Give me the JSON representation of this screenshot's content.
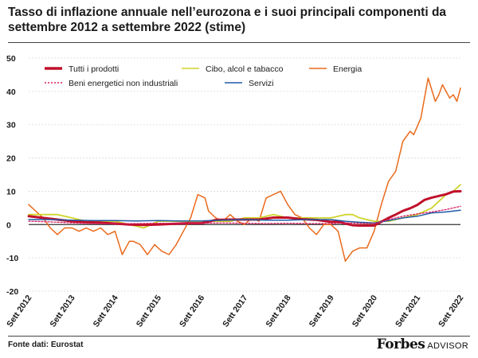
{
  "title": "Tasso di inflazione annuale nell’eurozona e i suoi principali componenti da settembre 2012 a settembre 2022 (stime)",
  "source": "Fonte dati: Eurostat",
  "brand": {
    "name": "Forbes",
    "sub": "ADVISOR"
  },
  "chart_data": {
    "type": "line",
    "title": "Tasso di inflazione annuale nell’eurozona e i suoi principali componenti da settembre 2012 a settembre 2022 (stime)",
    "xlabel": "",
    "ylabel": "",
    "ylim": [
      -20,
      50
    ],
    "yticks": [
      50,
      40,
      30,
      20,
      10,
      0,
      -10,
      -20
    ],
    "xlim": [
      0,
      120
    ],
    "x_tick_positions": [
      0,
      12,
      24,
      36,
      48,
      60,
      72,
      84,
      96,
      108,
      120
    ],
    "categories": [
      "Sett 2012",
      "Sett 2013",
      "Sett 2014",
      "Sett 2015",
      "Sett 2016",
      "Sett 2017",
      "Sett 2018",
      "Sett 2019",
      "Sett 2020",
      "Sett 2021",
      "Sett 2022"
    ],
    "legend": {
      "rows": [
        [
          {
            "name": "Tutti i prodotti",
            "color": "#c0102a",
            "style": "thick"
          },
          {
            "name": "Cibo, alcol e tabacco",
            "color": "#cfd32a",
            "style": "solid"
          },
          {
            "name": "Energia",
            "color": "#ea6a1b",
            "style": "solid"
          }
        ],
        [
          {
            "name": "Beni energetici non industriali",
            "color": "#d81b60",
            "style": "dotted"
          },
          {
            "name": "Servizi",
            "color": "#1f5aa6",
            "style": "solid"
          }
        ]
      ]
    },
    "series": [
      {
        "name": "Energia",
        "color": "#ea6a1b",
        "width": 1.5,
        "x": [
          0,
          2,
          4,
          6,
          8,
          10,
          12,
          14,
          16,
          18,
          20,
          22,
          24,
          26,
          28,
          29,
          31,
          33,
          35,
          37,
          39,
          41,
          43,
          45,
          47,
          49,
          50,
          52,
          54,
          56,
          58,
          60,
          62,
          64,
          66,
          68,
          70,
          72,
          74,
          76,
          78,
          80,
          82,
          84,
          86,
          88,
          90,
          92,
          94,
          96,
          98,
          100,
          102,
          104,
          106,
          107,
          109,
          111,
          113,
          114,
          115,
          116,
          117,
          118,
          119,
          120
        ],
        "values": [
          6,
          4,
          2,
          -1,
          -3,
          -1,
          -1,
          -2,
          -1,
          -2,
          -1,
          -3,
          -2,
          -9,
          -5,
          -5,
          -6,
          -9,
          -6,
          -8,
          -9,
          -6,
          -2,
          2,
          9,
          8,
          4,
          2,
          1,
          3,
          1,
          0,
          2,
          1,
          8,
          9,
          10,
          6,
          3,
          2,
          -1,
          -3,
          0,
          0,
          -2,
          -11,
          -8,
          -7,
          -7,
          -2,
          6,
          13,
          16,
          25,
          28,
          27,
          32,
          44,
          37,
          39,
          42,
          40,
          38,
          39,
          37,
          41
        ]
      },
      {
        "name": "Cibo, alcol e tabacco",
        "color": "#cfd32a",
        "width": 1.8,
        "x": [
          0,
          4,
          8,
          12,
          16,
          20,
          24,
          28,
          32,
          36,
          40,
          44,
          48,
          52,
          56,
          60,
          64,
          68,
          72,
          76,
          80,
          84,
          88,
          90,
          92,
          96,
          100,
          104,
          108,
          112,
          116,
          118,
          120
        ],
        "values": [
          3,
          3,
          3,
          2,
          1,
          1,
          1,
          0,
          -1,
          1,
          1,
          1,
          1,
          1,
          1,
          2,
          2,
          3,
          2,
          2,
          2,
          2,
          3,
          3,
          2,
          1,
          1,
          2,
          3,
          5,
          9,
          10,
          12
        ]
      },
      {
        "name": "Tutti i prodotti",
        "color": "#c0102a",
        "width": 3,
        "x": [
          0,
          4,
          8,
          12,
          16,
          20,
          24,
          28,
          32,
          36,
          40,
          44,
          48,
          52,
          56,
          60,
          64,
          68,
          72,
          76,
          80,
          84,
          86,
          88,
          90,
          92,
          96,
          100,
          102,
          104,
          106,
          108,
          110,
          112,
          114,
          116,
          118,
          120
        ],
        "values": [
          2.5,
          2,
          1.5,
          1,
          0.7,
          0.6,
          0.3,
          0,
          -0.1,
          0,
          0.2,
          0.4,
          0.4,
          1.4,
          1.5,
          1.5,
          1.5,
          2.1,
          2.1,
          1.6,
          1.4,
          0.8,
          0.9,
          0.3,
          -0.2,
          -0.3,
          -0.3,
          2,
          3,
          4.1,
          4.9,
          5.9,
          7.4,
          8.1,
          8.6,
          9.1,
          9.9,
          10
        ]
      },
      {
        "name": "Servizi",
        "color": "#1f5aa6",
        "width": 1.5,
        "x": [
          0,
          6,
          12,
          18,
          24,
          30,
          36,
          42,
          48,
          54,
          60,
          66,
          72,
          78,
          84,
          88,
          92,
          96,
          100,
          104,
          108,
          112,
          116,
          120
        ],
        "values": [
          1.5,
          1.5,
          1.3,
          1.2,
          1.2,
          1.1,
          1.2,
          1.1,
          1.1,
          1.3,
          1.5,
          1.3,
          1.3,
          1.5,
          1.5,
          1,
          0.7,
          0.5,
          1.2,
          2,
          2.5,
          3.5,
          3.8,
          4.3
        ]
      },
      {
        "name": "Beni energetici non industriali",
        "color": "#d81b60",
        "width": 1.3,
        "dash": "2,2",
        "x": [
          0,
          6,
          12,
          18,
          24,
          30,
          36,
          42,
          48,
          54,
          60,
          66,
          72,
          78,
          84,
          88,
          92,
          96,
          100,
          104,
          108,
          112,
          116,
          120
        ],
        "values": [
          1,
          0.8,
          0.5,
          0.3,
          0.2,
          0.3,
          0.4,
          0.3,
          0.4,
          0.5,
          0.4,
          0.3,
          0.4,
          0.3,
          0.3,
          0.5,
          0.4,
          0.3,
          1.5,
          2.5,
          3.2,
          3.8,
          4.5,
          5.5
        ]
      }
    ]
  }
}
